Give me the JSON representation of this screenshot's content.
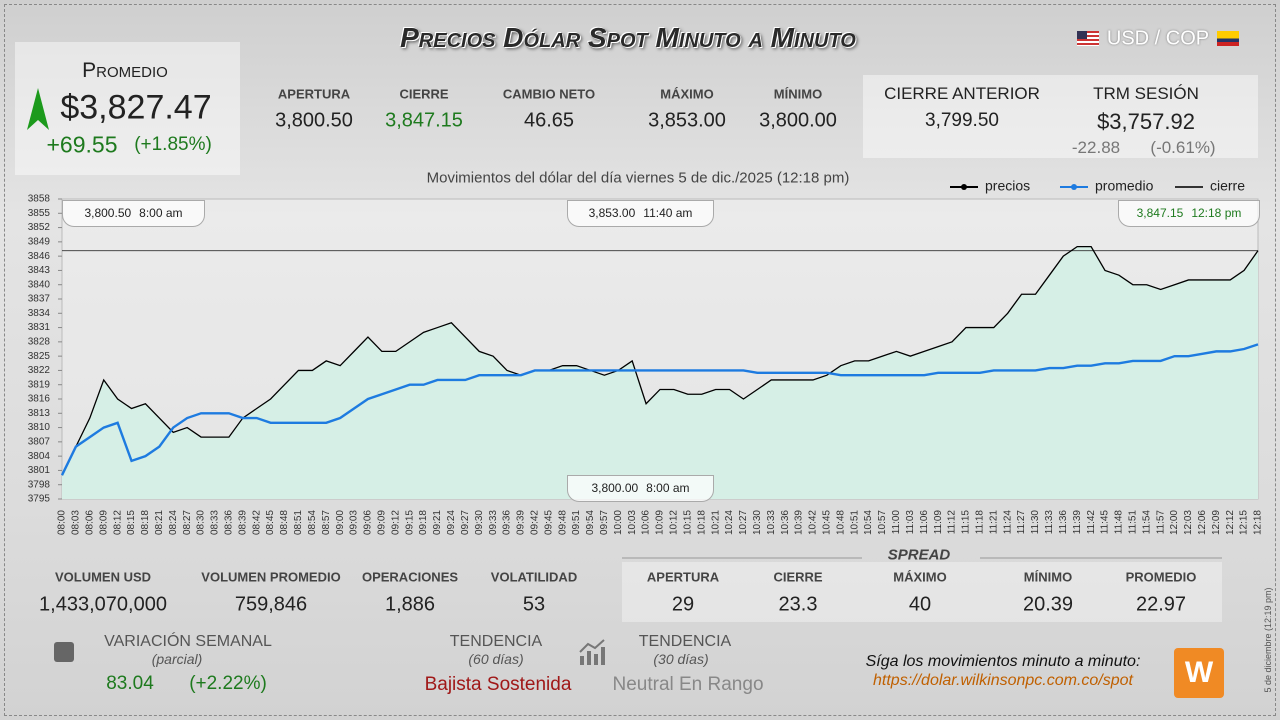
{
  "header": {
    "title": "Precios Dólar Spot Minuto a Minuto",
    "pair": "USD / COP"
  },
  "promedio": {
    "label": "Promedio",
    "value": "$3,827.47",
    "change": "+69.55",
    "percent": "(+1.85%)"
  },
  "stats": [
    {
      "label": "APERTURA",
      "value": "3,800.50"
    },
    {
      "label": "CIERRE",
      "value": "3,847.15"
    },
    {
      "label": "CAMBIO NETO",
      "value": "46.65"
    },
    {
      "label": "MÁXIMO",
      "value": "3,853.00"
    },
    {
      "label": "MÍNIMO",
      "value": "3,800.00"
    }
  ],
  "previous": {
    "label": "CIERRE ANTERIOR",
    "value": "3,799.50"
  },
  "trm": {
    "label": "TRM SESIÓN",
    "value": "$3,757.92",
    "change": "-22.88",
    "percent": "(-0.61%)"
  },
  "chart_data": {
    "type": "line",
    "subtitle": "Movimientos del dólar del día viernes 5 de dic./2025 (12:18 pm)",
    "categories": [
      "08:00",
      "08:03",
      "08:06",
      "08:09",
      "08:12",
      "08:15",
      "08:18",
      "08:21",
      "08:24",
      "08:27",
      "08:30",
      "08:33",
      "08:36",
      "08:39",
      "08:42",
      "08:45",
      "08:48",
      "08:51",
      "08:54",
      "08:57",
      "09:00",
      "09:03",
      "09:06",
      "09:09",
      "09:12",
      "09:15",
      "09:18",
      "09:21",
      "09:24",
      "09:27",
      "09:30",
      "09:33",
      "09:36",
      "09:39",
      "09:42",
      "09:45",
      "09:48",
      "09:51",
      "09:54",
      "09:57",
      "10:00",
      "10:03",
      "10:06",
      "10:09",
      "10:12",
      "10:15",
      "10:18",
      "10:21",
      "10:24",
      "10:27",
      "10:30",
      "10:33",
      "10:36",
      "10:39",
      "10:42",
      "10:45",
      "10:48",
      "10:51",
      "10:54",
      "10:57",
      "11:00",
      "11:03",
      "11:06",
      "11:09",
      "11:12",
      "11:15",
      "11:18",
      "11:21",
      "11:24",
      "11:27",
      "11:30",
      "11:33",
      "11:36",
      "11:39",
      "11:42",
      "11:45",
      "11:48",
      "11:51",
      "11:54",
      "11:57",
      "12:00",
      "12:03",
      "12:06",
      "12:09",
      "12:12",
      "12:15",
      "12:18"
    ],
    "series": [
      {
        "name": "precios",
        "color": "#000000",
        "values": [
          3800,
          3806,
          3812,
          3820,
          3816,
          3814,
          3815,
          3812,
          3809,
          3810,
          3808,
          3808,
          3808,
          3812,
          3814,
          3816,
          3819,
          3822,
          3822,
          3824,
          3823,
          3826,
          3829,
          3826,
          3826,
          3828,
          3830,
          3831,
          3832,
          3829,
          3826,
          3825,
          3822,
          3821,
          3822,
          3822,
          3823,
          3823,
          3822,
          3821,
          3822,
          3824,
          3815,
          3818,
          3818,
          3817,
          3817,
          3818,
          3818,
          3816,
          3818,
          3820,
          3820,
          3820,
          3820,
          3821,
          3823,
          3824,
          3824,
          3825,
          3826,
          3825,
          3826,
          3827,
          3828,
          3831,
          3831,
          3831,
          3834,
          3838,
          3838,
          3842,
          3846,
          3848,
          3848,
          3843,
          3842,
          3840,
          3840,
          3839,
          3840,
          3841,
          3841,
          3841,
          3841,
          3843,
          3847.15
        ]
      },
      {
        "name": "promedio",
        "color": "#1e7be0",
        "values": [
          3800,
          3806,
          3808,
          3810,
          3811,
          3803,
          3804,
          3806,
          3810,
          3812,
          3813,
          3813,
          3813,
          3812,
          3812,
          3811,
          3811,
          3811,
          3811,
          3811,
          3812,
          3814,
          3816,
          3817,
          3818,
          3819,
          3819,
          3820,
          3820,
          3820,
          3821,
          3821,
          3821,
          3821,
          3822,
          3822,
          3822,
          3822,
          3822,
          3822,
          3822,
          3822,
          3822,
          3822,
          3822,
          3822,
          3822,
          3822,
          3822,
          3822,
          3821.5,
          3821.5,
          3821.5,
          3821.5,
          3821.5,
          3821.5,
          3821,
          3821,
          3821,
          3821,
          3821,
          3821,
          3821,
          3821.5,
          3821.5,
          3821.5,
          3821.5,
          3822,
          3822,
          3822,
          3822,
          3822.5,
          3822.5,
          3823,
          3823,
          3823.5,
          3823.5,
          3824,
          3824,
          3824,
          3825,
          3825,
          3825.5,
          3826,
          3826,
          3826.5,
          3827.47
        ]
      }
    ],
    "reference": {
      "name": "cierre",
      "value": 3847.15,
      "color": "#333333"
    },
    "ylim": [
      3795,
      3858
    ],
    "yticks": [
      3795,
      3798,
      3801,
      3804,
      3807,
      3810,
      3813,
      3816,
      3819,
      3822,
      3825,
      3828,
      3831,
      3834,
      3837,
      3840,
      3843,
      3846,
      3849,
      3852,
      3855,
      3858
    ],
    "area_color": "#d6efe6",
    "annotations": [
      {
        "value": "3,800.50",
        "time": "8:00 am"
      },
      {
        "value": "3,853.00",
        "time": "11:40 am"
      },
      {
        "value": "3,847.15",
        "time": "12:18 pm"
      },
      {
        "value": "3,800.00",
        "time": "8:00 am"
      }
    ]
  },
  "volume": [
    {
      "label": "VOLUMEN USD",
      "value": "1,433,070,000"
    },
    {
      "label": "VOLUMEN PROMEDIO",
      "value": "759,846"
    },
    {
      "label": "OPERACIONES",
      "value": "1,886"
    },
    {
      "label": "VOLATILIDAD",
      "value": "53"
    }
  ],
  "spread": {
    "title": "SPREAD",
    "items": [
      {
        "label": "APERTURA",
        "value": "29"
      },
      {
        "label": "CIERRE",
        "value": "23.3"
      },
      {
        "label": "MÁXIMO",
        "value": "40"
      },
      {
        "label": "MÍNIMO",
        "value": "20.39"
      },
      {
        "label": "PROMEDIO",
        "value": "22.97"
      }
    ]
  },
  "weekly": {
    "label": "VARIACIÓN SEMANAL",
    "note": "(parcial)",
    "value": "83.04",
    "percent": "(+2.22%)"
  },
  "trend60": {
    "label": "TENDENCIA",
    "note": "(60 días)",
    "value": "Bajista Sostenida"
  },
  "trend30": {
    "label": "TENDENCIA",
    "note": "(30 días)",
    "value": "Neutral En Rango"
  },
  "footer": {
    "text": "Síga los movimientos minuto a minuto:",
    "url": "https://dolar.wilkinsonpc.com.co/spot",
    "side": "5 de diciembre (12:19 pm)"
  }
}
